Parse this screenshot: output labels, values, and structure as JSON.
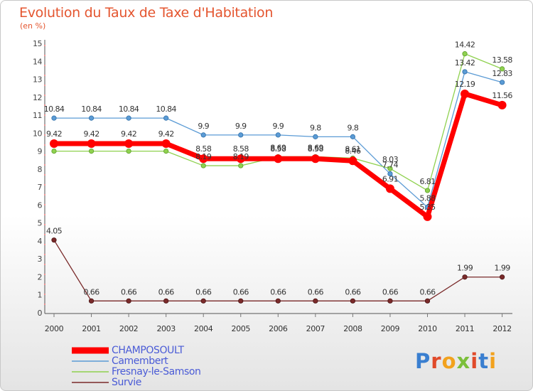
{
  "title": "Evolution du Taux de Taxe d'Habitation",
  "subtitle": "(en %)",
  "logo_text": "Proxiti",
  "chart_data": {
    "type": "line",
    "title": "Evolution du Taux de Taxe d'Habitation",
    "ylabel": "(en %)",
    "ylim": [
      0,
      15
    ],
    "yticks": [
      0,
      1,
      2,
      3,
      4,
      5,
      6,
      7,
      8,
      9,
      10,
      11,
      12,
      13,
      14,
      15
    ],
    "grid": false,
    "x": [
      "2000",
      "2001",
      "2002",
      "2003",
      "2004",
      "2005",
      "2006",
      "2007",
      "2008",
      "2009",
      "2010",
      "2011",
      "2012"
    ],
    "series": [
      {
        "name": "CHAMPOSOULT",
        "color": "#ff0000",
        "values": [
          9.42,
          9.42,
          9.42,
          9.42,
          8.58,
          8.58,
          8.58,
          8.58,
          8.46,
          6.91,
          5.35,
          12.19,
          11.56
        ],
        "labels": [
          "9.42",
          "9.42",
          "9.42",
          "9.42",
          "8.58",
          "8.58",
          "8.58",
          "8.58",
          "8.46",
          "6.91",
          "5.35",
          "12.19",
          "11.56"
        ]
      },
      {
        "name": "Camembert",
        "color": "#5b9bd5",
        "values": [
          10.84,
          10.84,
          10.84,
          10.84,
          9.9,
          9.9,
          9.9,
          9.8,
          9.8,
          7.74,
          5.88,
          13.42,
          12.83
        ],
        "labels": [
          "10.84",
          "10.84",
          "10.84",
          "10.84",
          "9.9",
          "9.9",
          "9.9",
          "9.8",
          "9.8",
          "7.74",
          "5.88",
          "13.42",
          "12.83"
        ]
      },
      {
        "name": "Fresnay-le-Samson",
        "color": "#8fd14f",
        "values": [
          9.0,
          9.0,
          9.0,
          9.0,
          8.19,
          8.19,
          8.69,
          8.69,
          8.61,
          8.03,
          6.81,
          14.42,
          13.58
        ],
        "labels": [
          "",
          "",
          "",
          "",
          "8.19",
          "8.19",
          "8.69",
          "8.69",
          "8.61",
          "8.03",
          "6.81",
          "14.42",
          "13.58"
        ]
      },
      {
        "name": "Survie",
        "color": "#7a2a2a",
        "values": [
          4.05,
          0.66,
          0.66,
          0.66,
          0.66,
          0.66,
          0.66,
          0.66,
          0.66,
          0.66,
          0.66,
          1.99,
          1.99
        ],
        "labels": [
          "4.05",
          "0.66",
          "0.66",
          "0.66",
          "0.66",
          "0.66",
          "0.66",
          "0.66",
          "0.66",
          "0.66",
          "0.66",
          "1.99",
          "1.99"
        ]
      }
    ],
    "legend": {
      "placement": "bottom-left"
    }
  }
}
